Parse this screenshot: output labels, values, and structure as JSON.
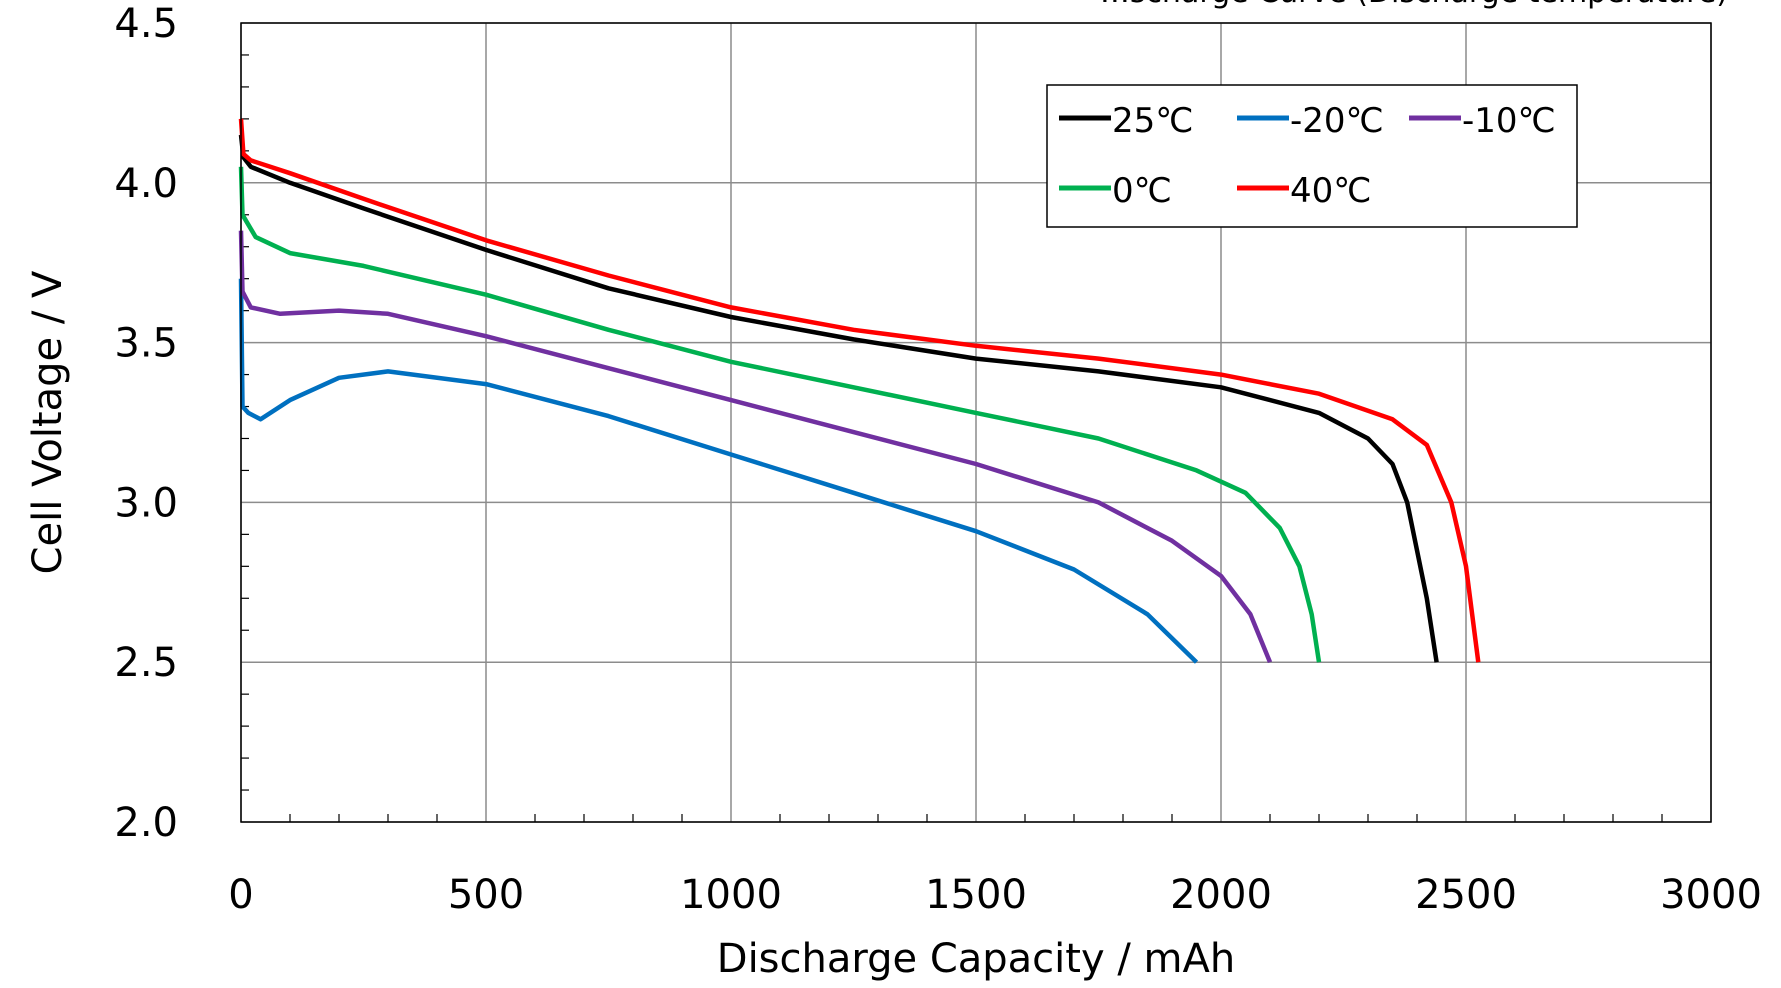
{
  "chart_data": {
    "type": "line",
    "title": "…scharge Curve (Discharge temperature)",
    "xlabel": "Discharge  Capacity / mAh",
    "ylabel": "Cell  Voltage  /  V",
    "xlim": [
      0,
      3000
    ],
    "ylim": [
      2.0,
      4.5
    ],
    "xticks": [
      "0",
      "500",
      "1000",
      "1500",
      "2000",
      "2500",
      "3000"
    ],
    "yticks": [
      "2.0",
      "2.5",
      "3.0",
      "3.5",
      "4.0",
      "4.5"
    ],
    "grid": true,
    "legend_position": "top-right",
    "series": [
      {
        "name": "25℃",
        "color": "#000000",
        "points": [
          [
            0,
            4.15
          ],
          [
            5,
            4.08
          ],
          [
            20,
            4.05
          ],
          [
            100,
            4.0
          ],
          [
            250,
            3.92
          ],
          [
            500,
            3.79
          ],
          [
            750,
            3.67
          ],
          [
            1000,
            3.58
          ],
          [
            1250,
            3.51
          ],
          [
            1500,
            3.45
          ],
          [
            1750,
            3.41
          ],
          [
            2000,
            3.36
          ],
          [
            2200,
            3.28
          ],
          [
            2300,
            3.2
          ],
          [
            2350,
            3.12
          ],
          [
            2380,
            3.0
          ],
          [
            2400,
            2.85
          ],
          [
            2420,
            2.7
          ],
          [
            2440,
            2.5
          ]
        ]
      },
      {
        "name": "-20℃",
        "color": "#0070c0",
        "points": [
          [
            0,
            3.7
          ],
          [
            3,
            3.3
          ],
          [
            15,
            3.28
          ],
          [
            40,
            3.26
          ],
          [
            100,
            3.32
          ],
          [
            200,
            3.39
          ],
          [
            300,
            3.41
          ],
          [
            500,
            3.37
          ],
          [
            750,
            3.27
          ],
          [
            1000,
            3.15
          ],
          [
            1250,
            3.03
          ],
          [
            1500,
            2.91
          ],
          [
            1700,
            2.79
          ],
          [
            1850,
            2.65
          ],
          [
            1950,
            2.5
          ]
        ]
      },
      {
        "name": "-10℃",
        "color": "#7030a0",
        "points": [
          [
            0,
            3.85
          ],
          [
            3,
            3.66
          ],
          [
            20,
            3.61
          ],
          [
            80,
            3.59
          ],
          [
            200,
            3.6
          ],
          [
            300,
            3.59
          ],
          [
            500,
            3.52
          ],
          [
            750,
            3.42
          ],
          [
            1000,
            3.32
          ],
          [
            1250,
            3.22
          ],
          [
            1500,
            3.12
          ],
          [
            1750,
            3.0
          ],
          [
            1900,
            2.88
          ],
          [
            2000,
            2.77
          ],
          [
            2060,
            2.65
          ],
          [
            2100,
            2.5
          ]
        ]
      },
      {
        "name": "0℃",
        "color": "#00b050",
        "points": [
          [
            0,
            4.05
          ],
          [
            3,
            3.9
          ],
          [
            30,
            3.83
          ],
          [
            100,
            3.78
          ],
          [
            250,
            3.74
          ],
          [
            500,
            3.65
          ],
          [
            750,
            3.54
          ],
          [
            1000,
            3.44
          ],
          [
            1250,
            3.36
          ],
          [
            1500,
            3.28
          ],
          [
            1750,
            3.2
          ],
          [
            1950,
            3.1
          ],
          [
            2050,
            3.03
          ],
          [
            2120,
            2.92
          ],
          [
            2160,
            2.8
          ],
          [
            2185,
            2.65
          ],
          [
            2200,
            2.5
          ]
        ]
      },
      {
        "name": "40℃",
        "color": "#ff0000",
        "points": [
          [
            0,
            4.2
          ],
          [
            5,
            4.09
          ],
          [
            20,
            4.07
          ],
          [
            100,
            4.03
          ],
          [
            250,
            3.95
          ],
          [
            500,
            3.82
          ],
          [
            750,
            3.71
          ],
          [
            1000,
            3.61
          ],
          [
            1250,
            3.54
          ],
          [
            1500,
            3.49
          ],
          [
            1750,
            3.45
          ],
          [
            2000,
            3.4
          ],
          [
            2200,
            3.34
          ],
          [
            2350,
            3.26
          ],
          [
            2420,
            3.18
          ],
          [
            2470,
            3.0
          ],
          [
            2500,
            2.8
          ],
          [
            2525,
            2.5
          ]
        ]
      }
    ]
  }
}
